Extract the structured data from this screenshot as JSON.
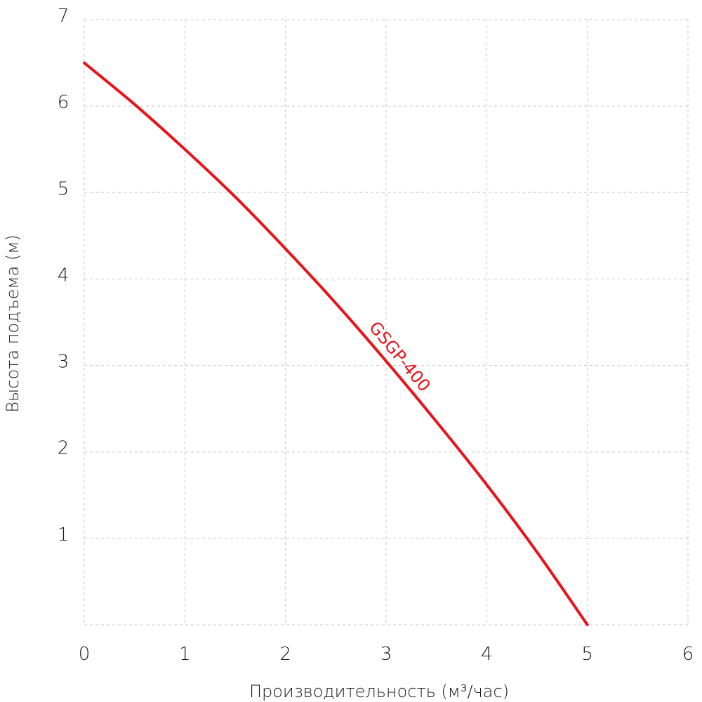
{
  "chart_data": {
    "type": "line",
    "title": "",
    "xlabel": "Производительность (м³/час)",
    "ylabel": "Высота подъема (м)",
    "xlim": [
      0,
      6
    ],
    "ylim": [
      0,
      7
    ],
    "xticks": [
      "0",
      "1",
      "2",
      "3",
      "4",
      "5",
      "6"
    ],
    "yticks": [
      "1",
      "2",
      "3",
      "4",
      "5",
      "6",
      "7"
    ],
    "grid": true,
    "series": [
      {
        "name": "GSGP-400",
        "color": "#e8141b",
        "x": [
          0,
          0.5,
          1,
          1.5,
          2,
          2.5,
          3,
          3.5,
          4,
          4.5,
          5
        ],
        "y": [
          6.5,
          6.02,
          5.5,
          4.95,
          4.35,
          3.72,
          3.05,
          2.35,
          1.62,
          0.84,
          0
        ]
      }
    ],
    "annotations": [
      {
        "text": "GSGP-400",
        "series": "GSGP-400",
        "at_x": 3.05
      }
    ]
  }
}
